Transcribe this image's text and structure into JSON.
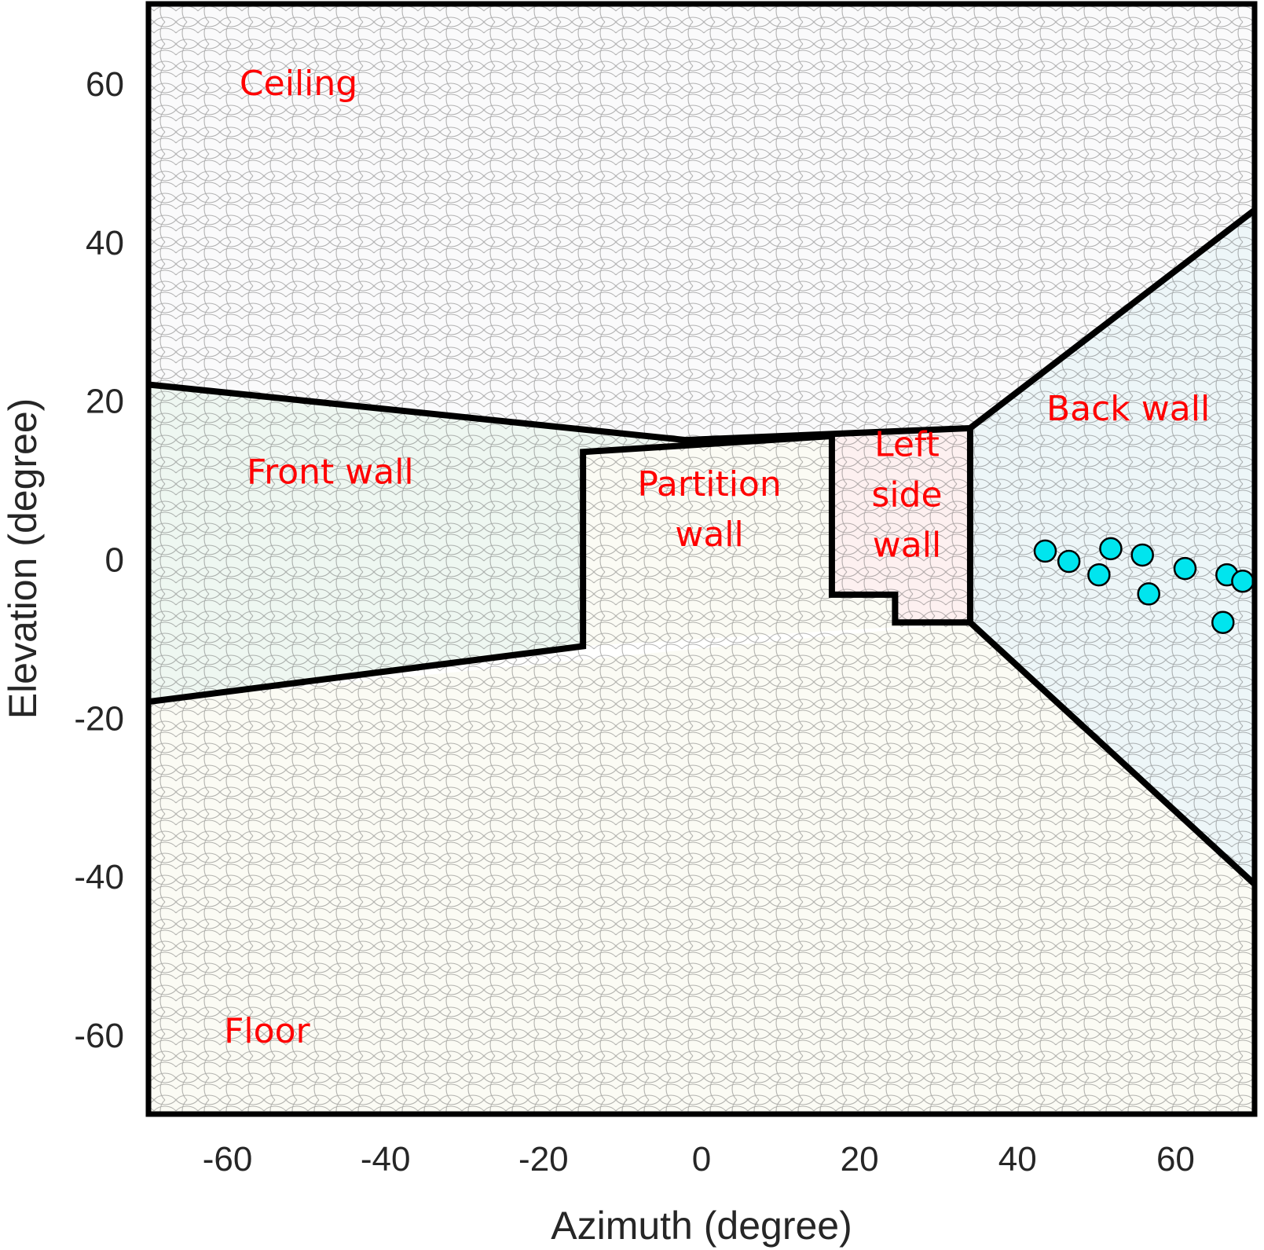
{
  "chart_data": {
    "type": "scatter",
    "title": "",
    "xlabel": "Azimuth (degree)",
    "ylabel": "Elevation (degree)",
    "xlim": [
      -70,
      70
    ],
    "ylim": [
      -70,
      70
    ],
    "xticks": [
      -60,
      -40,
      -20,
      0,
      20,
      40,
      60
    ],
    "yticks": [
      60,
      40,
      20,
      0,
      -20,
      -40,
      -60
    ],
    "xtick_labels": [
      "-60",
      "-40",
      "-20",
      "0",
      "20",
      "40",
      "60"
    ],
    "ytick_labels": [
      "60",
      "40",
      "20",
      "0",
      "-20",
      "-40",
      "-60"
    ],
    "grid": false,
    "fill_pattern": "hexagonal mesh",
    "regions": [
      {
        "label": "Ceiling",
        "color": "#fafafb",
        "polygon": [
          [
            -70,
            70
          ],
          [
            70,
            70
          ],
          [
            70,
            44
          ],
          [
            34,
            16.5
          ],
          [
            -2,
            15
          ],
          [
            -70,
            22
          ]
        ]
      },
      {
        "label": "Floor",
        "color": "#fbfbf4",
        "polygon": [
          [
            -70,
            -70
          ],
          [
            70,
            -70
          ],
          [
            70,
            -41
          ],
          [
            34,
            -8
          ],
          [
            -70,
            -18
          ]
        ]
      },
      {
        "label": "Front wall",
        "color": "#eef7f1",
        "polygon": [
          [
            -70,
            22
          ],
          [
            -2,
            15
          ],
          [
            -15,
            13.5
          ],
          [
            -15,
            -11
          ],
          [
            -70,
            -18
          ]
        ]
      },
      {
        "label": "Partition wall",
        "color": "#fbfbf4",
        "polygon": [
          [
            -15,
            13.5
          ],
          [
            -2,
            15
          ],
          [
            16.5,
            15.5
          ],
          [
            16.5,
            -4.5
          ],
          [
            24.5,
            -4.5
          ],
          [
            24.5,
            -8
          ],
          [
            34,
            -8
          ],
          [
            -15,
            -11
          ]
        ]
      },
      {
        "label": "Left side wall",
        "color": "#fdf0f0",
        "polygon": [
          [
            16.5,
            15.5
          ],
          [
            34,
            16.5
          ],
          [
            34,
            -8
          ],
          [
            24.5,
            -8
          ],
          [
            24.5,
            -4.5
          ],
          [
            16.5,
            -4.5
          ]
        ]
      },
      {
        "label": "Back wall",
        "color": "#edf6f8",
        "polygon": [
          [
            34,
            16.5
          ],
          [
            70,
            44
          ],
          [
            70,
            -41
          ],
          [
            34,
            -8
          ]
        ]
      }
    ],
    "boundaries": [
      [
        [
          -70,
          22
        ],
        [
          -2,
          15
        ],
        [
          34,
          16.5
        ],
        [
          70,
          44
        ]
      ],
      [
        [
          -70,
          -18
        ],
        [
          -15,
          -11
        ],
        [
          -15,
          13.5
        ],
        [
          16.5,
          15.5
        ]
      ],
      [
        [
          16.5,
          15.5
        ],
        [
          16.5,
          -4.5
        ],
        [
          24.5,
          -4.5
        ],
        [
          24.5,
          -8
        ],
        [
          34,
          -8
        ],
        [
          70,
          -41
        ]
      ],
      [
        [
          34,
          16.5
        ],
        [
          34,
          -8
        ]
      ]
    ],
    "region_labels": [
      {
        "text": "Ceiling",
        "lines": [
          "Ceiling"
        ],
        "x": -51,
        "y": 58.5,
        "color": "#ff0000"
      },
      {
        "text": "Front wall",
        "lines": [
          "Front wall"
        ],
        "x": -47,
        "y": 9.5,
        "color": "#ff0000"
      },
      {
        "text": "Partition wall",
        "lines": [
          "Partition",
          "wall"
        ],
        "x": 1,
        "y": 8,
        "color": "#ff0000"
      },
      {
        "text": "Left side wall",
        "lines": [
          "Left",
          "side",
          "wall"
        ],
        "x": 26,
        "y": 13,
        "color": "#ff0000"
      },
      {
        "text": "Back wall",
        "lines": [
          "Back wall"
        ],
        "x": 54,
        "y": 17.5,
        "color": "#ff0000"
      },
      {
        "text": "Floor",
        "lines": [
          "Floor"
        ],
        "x": -55,
        "y": -61,
        "color": "#ff0000"
      }
    ],
    "series": [
      {
        "marker": "circle",
        "color": "#00e5ee",
        "edge_color": "#000000",
        "x": [
          43.5,
          46.5,
          51.8,
          50.3,
          55.8,
          56.6,
          61.2,
          66.5,
          68.5,
          66
        ],
        "y": [
          1.0,
          -0.3,
          1.3,
          -2.0,
          0.5,
          -4.4,
          -1.2,
          -2.0,
          -2.8,
          -8.0
        ]
      }
    ]
  }
}
